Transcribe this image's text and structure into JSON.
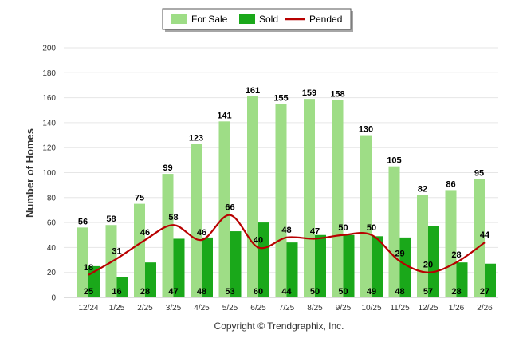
{
  "chart_data": {
    "type": "bar",
    "title": "",
    "xlabel": "",
    "ylabel": "Number of Homes",
    "ylim": [
      0,
      200
    ],
    "yticks": [
      0,
      20,
      40,
      60,
      80,
      100,
      120,
      140,
      160,
      180,
      200
    ],
    "grid": true,
    "legend_position": "top-center",
    "categories": [
      "12/24",
      "1/25",
      "2/25",
      "3/25",
      "4/25",
      "5/25",
      "6/25",
      "7/25",
      "8/25",
      "9/25",
      "10/25",
      "11/25",
      "12/25",
      "1/26",
      "2/26"
    ],
    "series": [
      {
        "name": "For Sale",
        "kind": "bar",
        "color": "#9edd86",
        "values": [
          56,
          58,
          75,
          99,
          123,
          141,
          161,
          155,
          159,
          158,
          130,
          105,
          82,
          86,
          95
        ]
      },
      {
        "name": "Sold",
        "kind": "bar",
        "color": "#1aa81a",
        "values": [
          25,
          16,
          28,
          47,
          48,
          53,
          60,
          44,
          50,
          50,
          49,
          48,
          57,
          28,
          27
        ]
      },
      {
        "name": "Pended",
        "kind": "line",
        "color": "#b80000",
        "values": [
          18,
          31,
          46,
          58,
          46,
          66,
          40,
          48,
          47,
          50,
          50,
          29,
          20,
          28,
          44
        ]
      }
    ],
    "footer": "Copyright © Trendgraphix, Inc."
  }
}
